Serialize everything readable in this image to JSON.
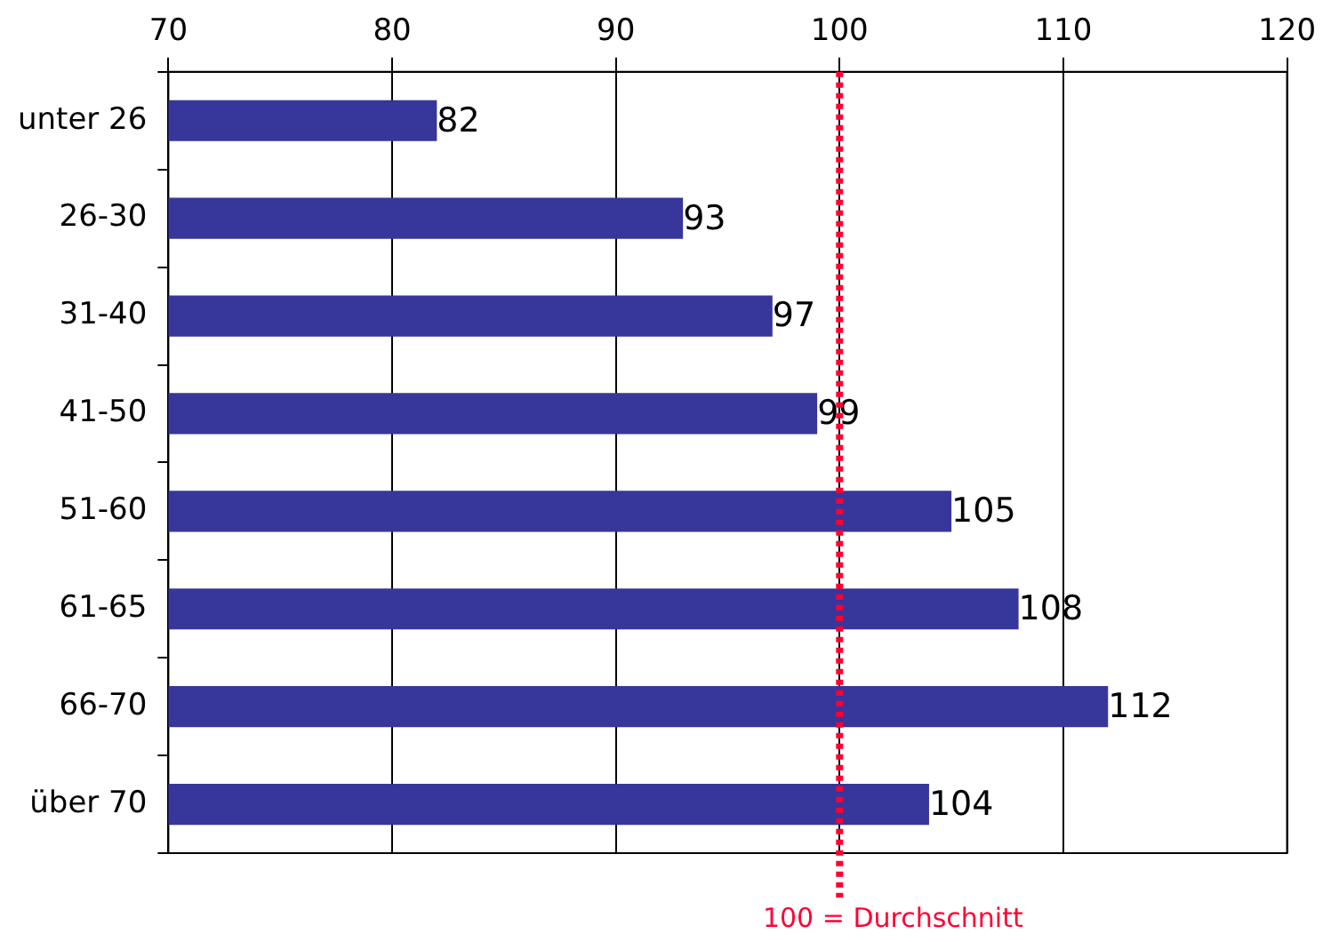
{
  "chart_data": {
    "type": "bar",
    "orientation": "horizontal",
    "categories": [
      "unter 26",
      "26-30",
      "31-40",
      "41-50",
      "51-60",
      "61-65",
      "66-70",
      "über 70"
    ],
    "values": [
      82,
      93,
      97,
      99,
      105,
      108,
      112,
      104
    ],
    "color": "#37369a",
    "xlim": [
      70,
      120
    ],
    "xticks": [
      70,
      80,
      90,
      100,
      110,
      120
    ],
    "grid": "x",
    "legend": false,
    "data_labels": true,
    "ref_lines": [
      {
        "axis": "x",
        "value": 100,
        "label": "100 = Durchschnitt",
        "color": "#ff0033",
        "line_style": "dotted"
      }
    ]
  }
}
